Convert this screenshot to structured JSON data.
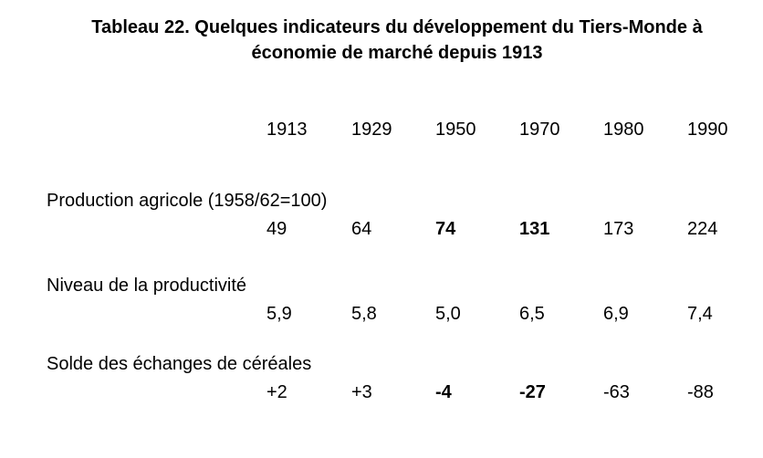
{
  "title": {
    "line1": "Tableau 22. Quelques indicateurs du développement du Tiers-Monde à",
    "line2": "économie de marché depuis 1913"
  },
  "years": [
    "1913",
    "1929",
    "1950",
    "1970",
    "1980",
    "1990"
  ],
  "rows": [
    {
      "label": "Production agricole (1958/62=100)",
      "values": [
        "49",
        "64",
        "74",
        "131",
        "173",
        "224"
      ]
    },
    {
      "label": "Niveau de la productivité",
      "values": [
        "5,9",
        "5,8",
        "5,0",
        "6,5",
        "6,9",
        "7,4"
      ]
    },
    {
      "label": "Solde des échanges de céréales",
      "values": [
        "+2",
        "+3",
        "-4",
        "-27",
        "-63",
        "-88"
      ]
    }
  ]
}
